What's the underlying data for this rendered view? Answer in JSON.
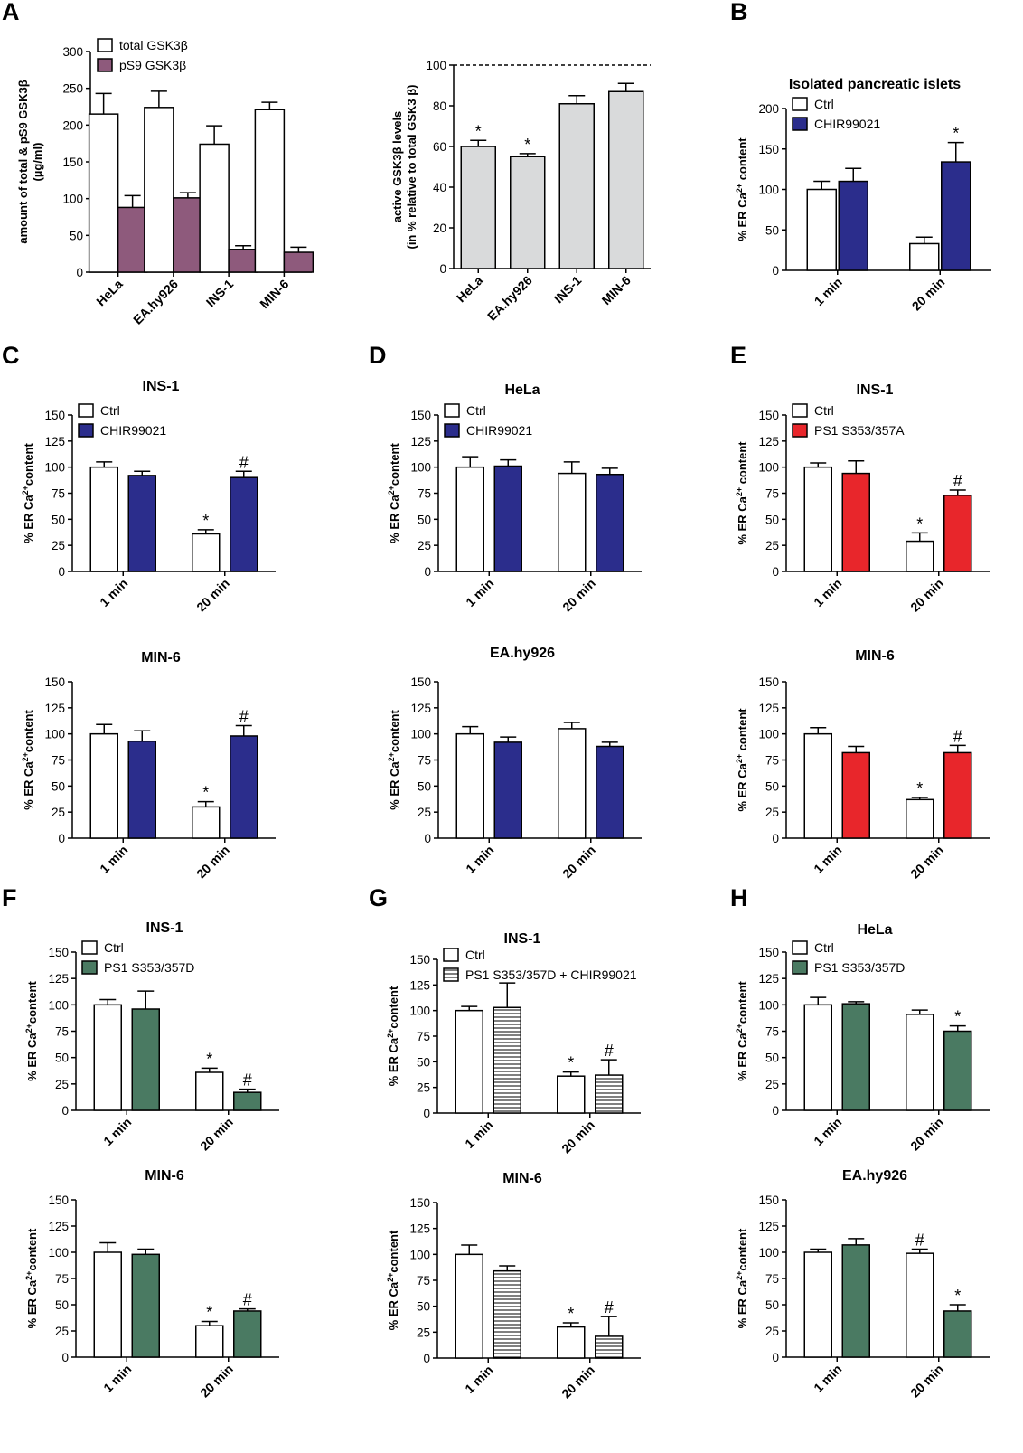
{
  "panel_letters": [
    "A",
    "B",
    "C",
    "D",
    "E",
    "F",
    "G",
    "H"
  ],
  "styles": {
    "Ctrl": {
      "fill": "#ffffff"
    },
    "total": {
      "fill": "#ffffff"
    },
    "pS9": {
      "fill": "#8e5a7c"
    },
    "active": {
      "fill": "#d9dadb"
    },
    "CHIR": {
      "fill": "#2b2d8c"
    },
    "PS1A": {
      "fill": "#e8262b"
    },
    "PS1D": {
      "fill": "#4a7a62"
    },
    "PS1DCHIR": {
      "fill": "#ffffff",
      "pattern": "horizontal-stripes"
    }
  },
  "chart_data": [
    {
      "id": "A1",
      "letter": "A",
      "type": "bar",
      "title": "",
      "ylabel": [
        "amount of total & pS9 GSK3β",
        "(µg/ml)"
      ],
      "ylim": [
        0,
        300
      ],
      "ticks": [
        0,
        50,
        100,
        150,
        200,
        250,
        300
      ],
      "categories": [
        "HeLa",
        "EA.hy926",
        "INS-1",
        "MIN-6"
      ],
      "series": [
        {
          "name": "total GSK3β",
          "style": "total",
          "values": [
            215,
            224,
            174,
            221
          ],
          "err": [
            28,
            22,
            25,
            10
          ],
          "marks": [
            "",
            "",
            "",
            ""
          ]
        },
        {
          "name": "pS9 GSK3β",
          "style": "pS9",
          "values": [
            88,
            101,
            31,
            27
          ],
          "err": [
            16,
            7,
            5,
            7
          ],
          "marks": [
            "",
            "",
            "",
            ""
          ]
        }
      ]
    },
    {
      "id": "A2",
      "letter": "",
      "type": "bar",
      "title": "",
      "ylabel": [
        "active GSK3β levels",
        "(in % relative to total GSK3 β)"
      ],
      "ylim": [
        0,
        100
      ],
      "ticks": [
        0,
        20,
        40,
        60,
        80,
        100
      ],
      "reference_line": 100,
      "categories": [
        "HeLa",
        "EA.hy926",
        "INS-1",
        "MIN-6"
      ],
      "series": [
        {
          "name": "",
          "style": "active",
          "values": [
            60,
            55,
            81,
            87
          ],
          "err": [
            3,
            1.5,
            4,
            4
          ],
          "marks": [
            "*",
            "*",
            "",
            ""
          ]
        }
      ]
    },
    {
      "id": "B",
      "letter": "B",
      "type": "bar",
      "title": "Isolated pancreatic islets",
      "ylabel": [
        "% ER Ca2+ content"
      ],
      "ylim": [
        0,
        200
      ],
      "ticks": [
        0,
        50,
        100,
        150,
        200
      ],
      "categories": [
        "1 min",
        "20 min"
      ],
      "series": [
        {
          "name": "Ctrl",
          "style": "Ctrl",
          "values": [
            100,
            33
          ],
          "err": [
            10,
            8
          ],
          "marks": [
            "",
            ""
          ]
        },
        {
          "name": "CHIR99021",
          "style": "CHIR",
          "values": [
            110,
            134
          ],
          "err": [
            16,
            24
          ],
          "marks": [
            "",
            "*"
          ]
        }
      ]
    },
    {
      "id": "C1",
      "letter": "C",
      "type": "bar",
      "title": "INS-1",
      "ylabel": [
        "% ER Ca2+content"
      ],
      "ylim": [
        0,
        150
      ],
      "ticks": [
        0,
        25,
        50,
        75,
        100,
        125,
        150
      ],
      "categories": [
        "1 min",
        "20 min"
      ],
      "series": [
        {
          "name": "Ctrl",
          "style": "Ctrl",
          "values": [
            100,
            36
          ],
          "err": [
            5,
            4
          ],
          "marks": [
            "",
            "*"
          ]
        },
        {
          "name": "CHIR99021",
          "style": "CHIR",
          "values": [
            92,
            90
          ],
          "err": [
            4,
            6
          ],
          "marks": [
            "",
            "#"
          ]
        }
      ]
    },
    {
      "id": "C2",
      "letter": "",
      "type": "bar",
      "title": "MIN-6",
      "ylabel": [
        "% ER Ca2+content"
      ],
      "ylim": [
        0,
        150
      ],
      "ticks": [
        0,
        25,
        50,
        75,
        100,
        125,
        150
      ],
      "categories": [
        "1 min",
        "20 min"
      ],
      "series": [
        {
          "name": "Ctrl",
          "style": "Ctrl",
          "values": [
            100,
            30
          ],
          "err": [
            9,
            5
          ],
          "marks": [
            "",
            "*"
          ]
        },
        {
          "name": "CHIR99021",
          "style": "CHIR",
          "values": [
            93,
            98
          ],
          "err": [
            10,
            10
          ],
          "marks": [
            "",
            "#"
          ]
        }
      ]
    },
    {
      "id": "D1",
      "letter": "D",
      "type": "bar",
      "title": "HeLa",
      "ylabel": [
        "% ER Ca2+content"
      ],
      "ylim": [
        0,
        150
      ],
      "ticks": [
        0,
        25,
        50,
        75,
        100,
        125,
        150
      ],
      "categories": [
        "1 min",
        "20 min"
      ],
      "series": [
        {
          "name": "Ctrl",
          "style": "Ctrl",
          "values": [
            100,
            94
          ],
          "err": [
            10,
            11
          ],
          "marks": [
            "",
            ""
          ]
        },
        {
          "name": "CHIR99021",
          "style": "CHIR",
          "values": [
            101,
            93
          ],
          "err": [
            6,
            6
          ],
          "marks": [
            "",
            ""
          ]
        }
      ]
    },
    {
      "id": "D2",
      "letter": "",
      "type": "bar",
      "title": "EA.hy926",
      "ylabel": [
        "% ER Ca2+content"
      ],
      "ylim": [
        0,
        150
      ],
      "ticks": [
        0,
        25,
        50,
        75,
        100,
        125,
        150
      ],
      "categories": [
        "1 min",
        "20 min"
      ],
      "series": [
        {
          "name": "Ctrl",
          "style": "Ctrl",
          "values": [
            100,
            105
          ],
          "err": [
            7,
            6
          ],
          "marks": [
            "",
            ""
          ]
        },
        {
          "name": "CHIR99021",
          "style": "CHIR",
          "values": [
            92,
            88
          ],
          "err": [
            5,
            4
          ],
          "marks": [
            "",
            ""
          ]
        }
      ]
    },
    {
      "id": "E1",
      "letter": "E",
      "type": "bar",
      "title": "INS-1",
      "ylabel": [
        "% ER Ca2+ content"
      ],
      "ylim": [
        0,
        150
      ],
      "ticks": [
        0,
        25,
        50,
        75,
        100,
        125,
        150
      ],
      "categories": [
        "1 min",
        "20 min"
      ],
      "series": [
        {
          "name": "Ctrl",
          "style": "Ctrl",
          "values": [
            100,
            29
          ],
          "err": [
            4,
            8
          ],
          "marks": [
            "",
            "*"
          ]
        },
        {
          "name": "PS1 S353/357A",
          "style": "PS1A",
          "values": [
            94,
            73
          ],
          "err": [
            12,
            5
          ],
          "marks": [
            "",
            "#"
          ]
        }
      ]
    },
    {
      "id": "E2",
      "letter": "",
      "type": "bar",
      "title": "MIN-6",
      "ylabel": [
        "% ER Ca2+ content"
      ],
      "ylim": [
        0,
        150
      ],
      "ticks": [
        0,
        25,
        50,
        75,
        100,
        125,
        150
      ],
      "categories": [
        "1 min",
        "20 min"
      ],
      "series": [
        {
          "name": "Ctrl",
          "style": "Ctrl",
          "values": [
            100,
            37
          ],
          "err": [
            6,
            2
          ],
          "marks": [
            "",
            "*"
          ]
        },
        {
          "name": "PS1 S353/357A",
          "style": "PS1A",
          "values": [
            82,
            82
          ],
          "err": [
            6,
            7
          ],
          "marks": [
            "",
            "#"
          ]
        }
      ]
    },
    {
      "id": "F1",
      "letter": "F",
      "type": "bar",
      "title": "INS-1",
      "ylabel": [
        "% ER Ca2+content"
      ],
      "ylim": [
        0,
        150
      ],
      "ticks": [
        0,
        25,
        50,
        75,
        100,
        125,
        150
      ],
      "categories": [
        "1 min",
        "20 min"
      ],
      "series": [
        {
          "name": "Ctrl",
          "style": "Ctrl",
          "values": [
            100,
            36
          ],
          "err": [
            5,
            4
          ],
          "marks": [
            "",
            "*"
          ]
        },
        {
          "name": "PS1 S353/357D",
          "style": "PS1D",
          "values": [
            96,
            17
          ],
          "err": [
            17,
            3
          ],
          "marks": [
            "",
            "#"
          ]
        }
      ]
    },
    {
      "id": "F2",
      "letter": "",
      "type": "bar",
      "title": "MIN-6",
      "ylabel": [
        "% ER Ca2+content"
      ],
      "ylim": [
        0,
        150
      ],
      "ticks": [
        0,
        25,
        50,
        75,
        100,
        125,
        150
      ],
      "categories": [
        "1 min",
        "20 min"
      ],
      "series": [
        {
          "name": "Ctrl",
          "style": "Ctrl",
          "values": [
            100,
            30
          ],
          "err": [
            9,
            4
          ],
          "marks": [
            "",
            "*"
          ]
        },
        {
          "name": "PS1 S353/357D",
          "style": "PS1D",
          "values": [
            98,
            44
          ],
          "err": [
            5,
            2
          ],
          "marks": [
            "",
            "#"
          ]
        }
      ]
    },
    {
      "id": "G1",
      "letter": "G",
      "type": "bar",
      "title": "INS-1",
      "ylabel": [
        "% ER Ca2+content"
      ],
      "ylim": [
        0,
        150
      ],
      "ticks": [
        0,
        25,
        50,
        75,
        100,
        125,
        150
      ],
      "categories": [
        "1 min",
        "20 min"
      ],
      "series": [
        {
          "name": "Ctrl",
          "style": "Ctrl",
          "values": [
            100,
            36
          ],
          "err": [
            4,
            4
          ],
          "marks": [
            "",
            "*"
          ]
        },
        {
          "name": "PS1 S353/357D + CHIR99021",
          "style": "PS1DCHIR",
          "values": [
            103,
            37
          ],
          "err": [
            24,
            15
          ],
          "marks": [
            "",
            "#"
          ]
        }
      ]
    },
    {
      "id": "G2",
      "letter": "",
      "type": "bar",
      "title": "MIN-6",
      "ylabel": [
        "% ER Ca2+content"
      ],
      "ylim": [
        0,
        150
      ],
      "ticks": [
        0,
        25,
        50,
        75,
        100,
        125,
        150
      ],
      "categories": [
        "1 min",
        "20 min"
      ],
      "series": [
        {
          "name": "Ctrl",
          "style": "Ctrl",
          "values": [
            100,
            30
          ],
          "err": [
            9,
            4
          ],
          "marks": [
            "",
            "*"
          ]
        },
        {
          "name": "PS1 S353/357D + CHIR99021",
          "style": "PS1DCHIR",
          "values": [
            84,
            21
          ],
          "err": [
            5,
            19
          ],
          "marks": [
            "",
            "#"
          ]
        }
      ]
    },
    {
      "id": "H1",
      "letter": "H",
      "type": "bar",
      "title": "HeLa",
      "ylabel": [
        "% ER Ca2+content"
      ],
      "ylim": [
        0,
        150
      ],
      "ticks": [
        0,
        25,
        50,
        75,
        100,
        125,
        150
      ],
      "categories": [
        "1 min",
        "20 min"
      ],
      "series": [
        {
          "name": "Ctrl",
          "style": "Ctrl",
          "values": [
            100,
            91
          ],
          "err": [
            7,
            4
          ],
          "marks": [
            "",
            ""
          ]
        },
        {
          "name": "PS1 S353/357D",
          "style": "PS1D",
          "values": [
            101,
            75
          ],
          "err": [
            2,
            5
          ],
          "marks": [
            "",
            "*"
          ]
        }
      ]
    },
    {
      "id": "H2",
      "letter": "",
      "type": "bar",
      "title": "EA.hy926",
      "ylabel": [
        "% ER Ca2+content"
      ],
      "ylim": [
        0,
        150
      ],
      "ticks": [
        0,
        25,
        50,
        75,
        100,
        125,
        150
      ],
      "categories": [
        "1 min",
        "20 min"
      ],
      "series": [
        {
          "name": "Ctrl",
          "style": "Ctrl",
          "values": [
            100,
            99
          ],
          "err": [
            3,
            4
          ],
          "marks": [
            "",
            "#"
          ]
        },
        {
          "name": "PS1 S353/357D",
          "style": "PS1D",
          "values": [
            107,
            44
          ],
          "err": [
            6,
            6
          ],
          "marks": [
            "",
            "*"
          ]
        }
      ]
    }
  ]
}
